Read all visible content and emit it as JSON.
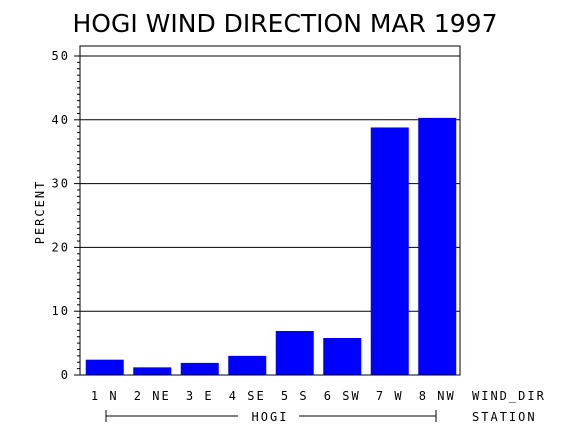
{
  "chart_data": {
    "type": "bar",
    "title": "HOGI WIND DIRECTION MAR 1997",
    "ylabel": "PERCENT",
    "xlabel": "WIND_DIR",
    "group_axis_label": "STATION",
    "group_label": "HOGI",
    "ylim": [
      0,
      50
    ],
    "yticks": [
      "0",
      "10",
      "20",
      "30",
      "40",
      "50"
    ],
    "grid": true,
    "bar_color": "#0000ff",
    "categories": [
      "1 N",
      "2 NE",
      "3 E",
      "4 SE",
      "5 S",
      "6 SW",
      "7 W",
      "8 NW"
    ],
    "values": [
      2.4,
      1.2,
      1.9,
      3.0,
      6.9,
      5.8,
      38.8,
      40.3
    ]
  }
}
